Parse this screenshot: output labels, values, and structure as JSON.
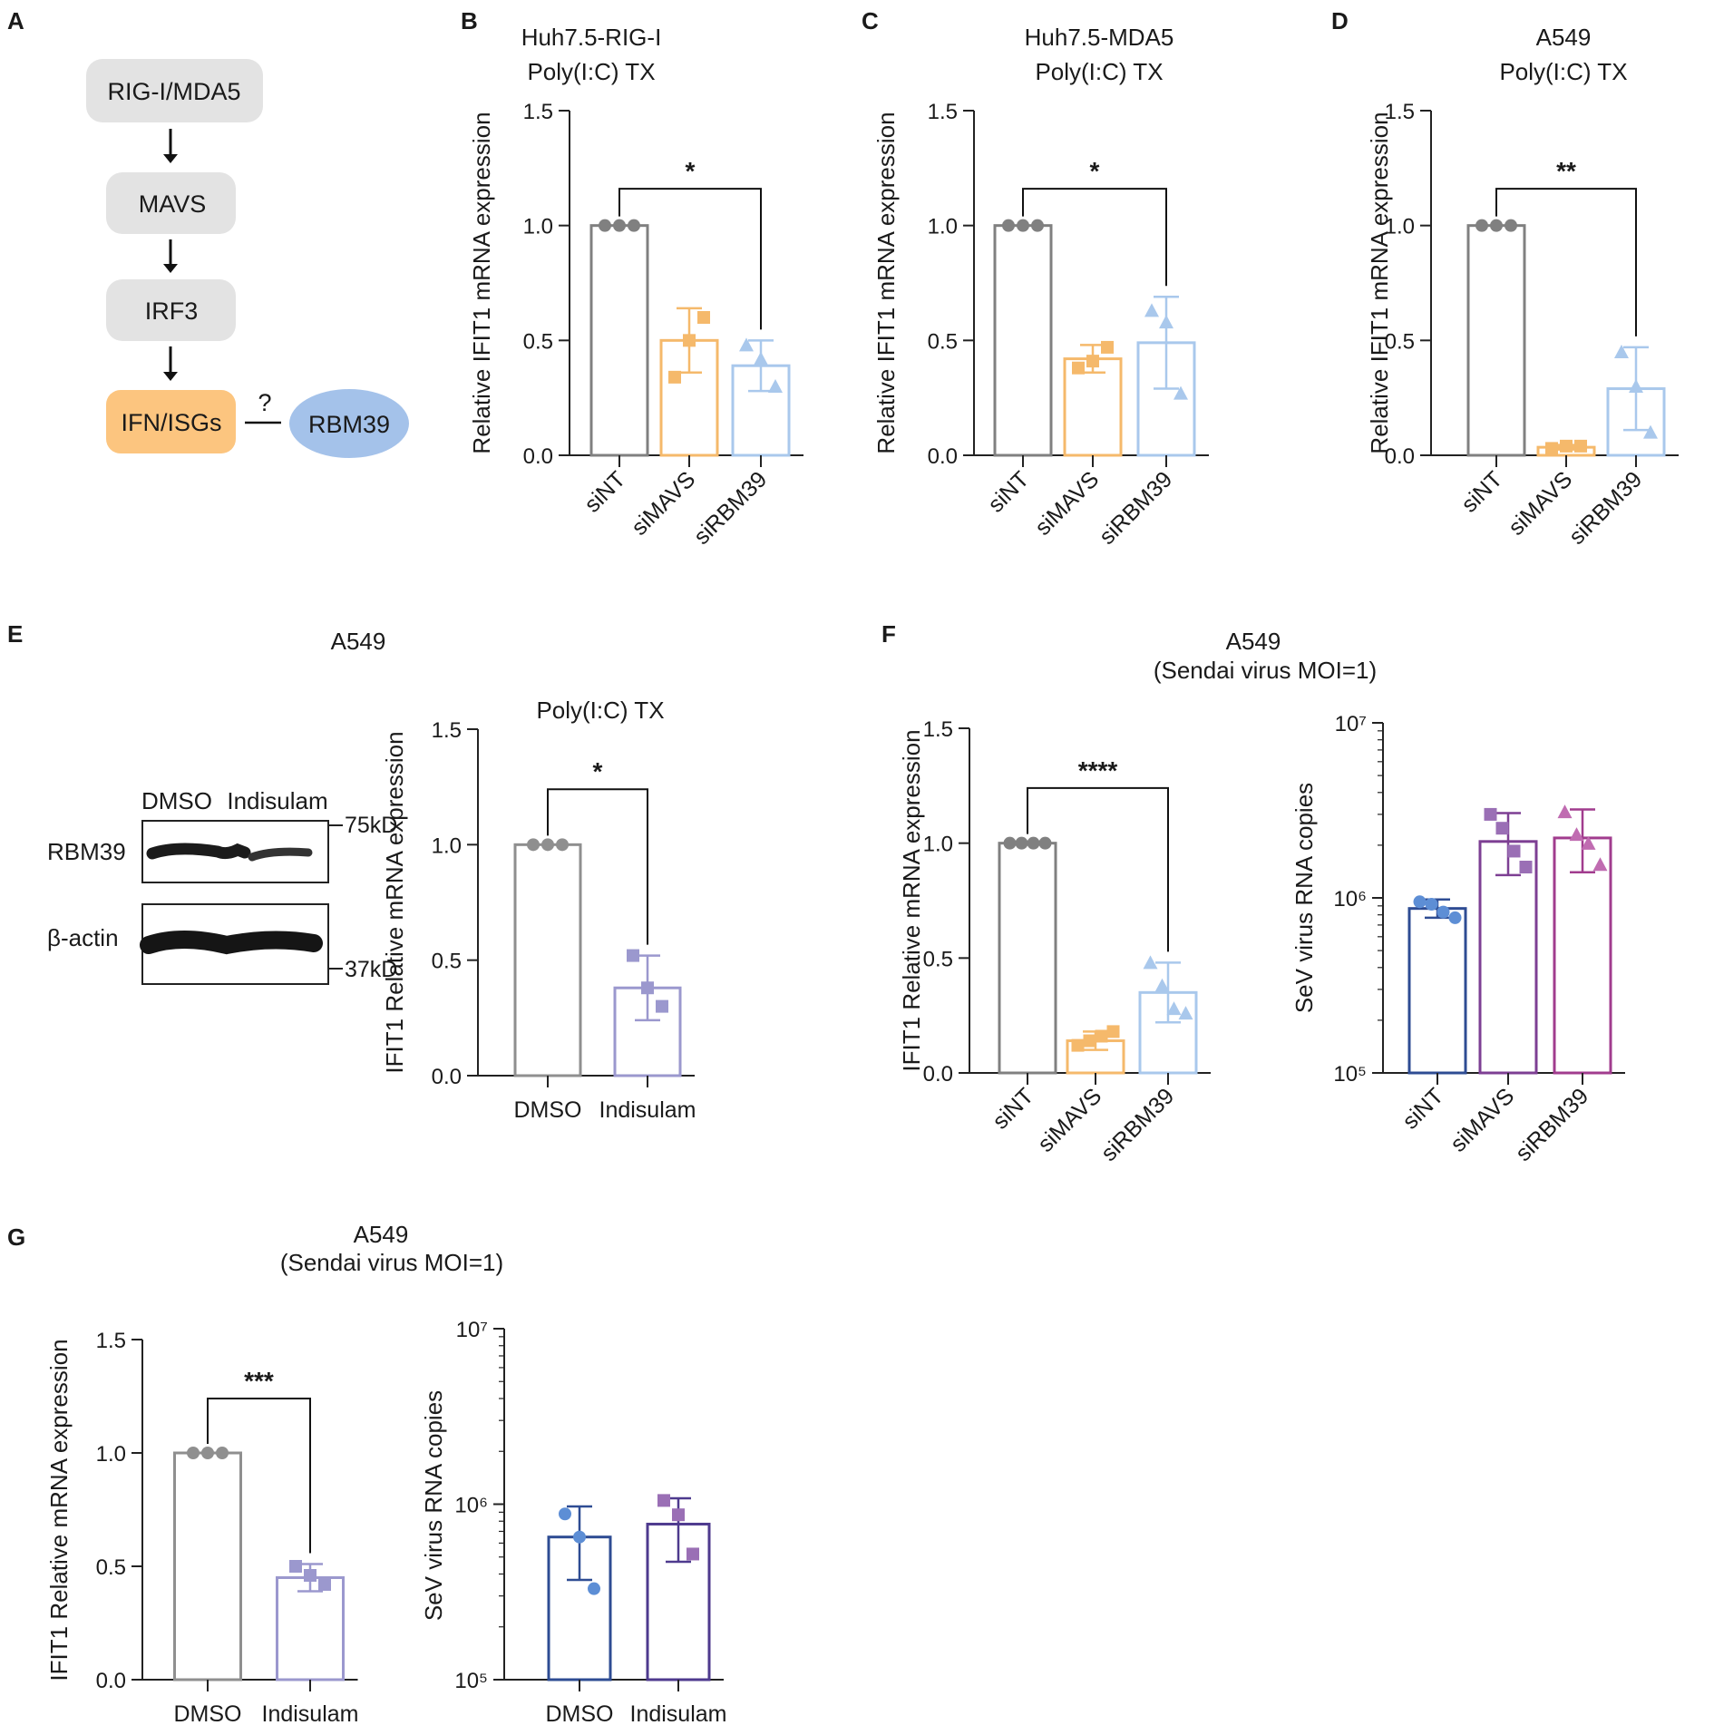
{
  "colors": {
    "siNT": "#808080",
    "siMAVS": "#F5B96B",
    "siRBM39": "#A9C8EC",
    "DMSO": "#8F8F8F",
    "Indisulam": "#9B98CE",
    "log_siNT": "#2E4C93",
    "log_siMAVS": "#7D3F93",
    "log_siRBM39": "#A13C8E",
    "log_DMSO": "#2E4C93",
    "log_Indisulam": "#4E3A8E",
    "dot_siNT_log": "#5D8ED5",
    "dot_siMAVS_log": "#9A6FB5",
    "dot_siRBM39_log": "#C06CB1",
    "flow_box": "#E3E3E3",
    "flow_ifn": "#FCC57F",
    "flow_rbm39": "#A4C2EA"
  },
  "panel_a": {
    "label": "A",
    "nodes": [
      "RIG-I/MDA5",
      "MAVS",
      "IRF3",
      "IFN/ISGs"
    ],
    "partner": "RBM39",
    "question": "?"
  },
  "panel_e_blot": {
    "cell_line": "A549",
    "lanes": [
      "DMSO",
      "Indisulam"
    ],
    "rows": [
      "RBM39",
      "β-actin"
    ],
    "markers": [
      "75kD",
      "37kD"
    ]
  },
  "group_titles": {
    "F": [
      "A549",
      "(Sendai virus MOI=1)"
    ],
    "G": [
      "A549",
      "(Sendai virus MOI=1)"
    ]
  },
  "chart_data": [
    {
      "id": "B",
      "panel_label": "B",
      "type": "bar",
      "title": [
        "Huh7.5-RIG-I",
        "Poly(I:C) TX"
      ],
      "ylabel": "Relative IFIT1 mRNA expression",
      "ylim": [
        0,
        1.5
      ],
      "yticks": [
        "0.0",
        "0.5",
        "1.0",
        "1.5"
      ],
      "categories": [
        "siNT",
        "siMAVS",
        "siRBM39"
      ],
      "values": [
        1.0,
        0.5,
        0.39
      ],
      "errors": [
        0,
        0.14,
        0.11
      ],
      "points": [
        [
          1.0,
          1.0,
          1.0
        ],
        [
          0.34,
          0.5,
          0.6
        ],
        [
          0.48,
          0.42,
          0.3
        ]
      ],
      "markers": [
        "circle",
        "square",
        "triangle"
      ],
      "colors": [
        "#808080",
        "#F5B96B",
        "#A9C8EC"
      ],
      "sig": {
        "from": 0,
        "to": 2,
        "label": "*",
        "y": 1.16
      }
    },
    {
      "id": "C",
      "panel_label": "C",
      "type": "bar",
      "title": [
        "Huh7.5-MDA5",
        "Poly(I:C) TX"
      ],
      "ylabel": "Relative IFIT1 mRNA expression",
      "ylim": [
        0,
        1.5
      ],
      "yticks": [
        "0.0",
        "0.5",
        "1.0",
        "1.5"
      ],
      "categories": [
        "siNT",
        "siMAVS",
        "siRBM39"
      ],
      "values": [
        1.0,
        0.42,
        0.49
      ],
      "errors": [
        0,
        0.06,
        0.2
      ],
      "points": [
        [
          1.0,
          1.0,
          1.0
        ],
        [
          0.38,
          0.41,
          0.47
        ],
        [
          0.63,
          0.58,
          0.27
        ]
      ],
      "markers": [
        "circle",
        "square",
        "triangle"
      ],
      "colors": [
        "#808080",
        "#F5B96B",
        "#A9C8EC"
      ],
      "sig": {
        "from": 0,
        "to": 2,
        "label": "*",
        "y": 1.16
      }
    },
    {
      "id": "D",
      "panel_label": "D",
      "type": "bar",
      "title": [
        "A549",
        "Poly(I:C) TX"
      ],
      "ylabel": "Relative IFIT1 mRNA expression",
      "ylim": [
        0,
        1.5
      ],
      "yticks": [
        "0.0",
        "0.5",
        "1.0",
        "1.5"
      ],
      "categories": [
        "siNT",
        "siMAVS",
        "siRBM39"
      ],
      "values": [
        1.0,
        0.035,
        0.29
      ],
      "errors": [
        0,
        0.01,
        0.18
      ],
      "points": [
        [
          1.0,
          1.0,
          1.0
        ],
        [
          0.03,
          0.04,
          0.04
        ],
        [
          0.45,
          0.3,
          0.1
        ]
      ],
      "markers": [
        "circle",
        "square",
        "triangle"
      ],
      "colors": [
        "#808080",
        "#F5B96B",
        "#A9C8EC"
      ],
      "sig": {
        "from": 0,
        "to": 2,
        "label": "**",
        "y": 1.16
      }
    },
    {
      "id": "E",
      "panel_label": "E",
      "type": "bar",
      "title": [
        "Poly(I:C) TX"
      ],
      "ylabel": "IFIT1 Relative  mRNA expression",
      "ylim": [
        0,
        1.5
      ],
      "yticks": [
        "0.0",
        "0.5",
        "1.0",
        "1.5"
      ],
      "categories": [
        "DMSO",
        "Indisulam"
      ],
      "values": [
        1.0,
        0.38
      ],
      "errors": [
        0,
        0.14
      ],
      "points": [
        [
          1.0,
          1.0,
          1.0
        ],
        [
          0.52,
          0.38,
          0.3
        ]
      ],
      "markers": [
        "circle",
        "square"
      ],
      "colors": [
        "#8F8F8F",
        "#9B98CE"
      ],
      "sig": {
        "from": 0,
        "to": 1,
        "label": "*",
        "y": 1.24
      }
    },
    {
      "id": "F1",
      "panel_label": "F",
      "type": "bar",
      "title": [],
      "ylabel": "IFIT1 Relative  mRNA expression",
      "ylim": [
        0,
        1.5
      ],
      "yticks": [
        "0.0",
        "0.5",
        "1.0",
        "1.5"
      ],
      "categories": [
        "siNT",
        "siMAVS",
        "siRBM39"
      ],
      "values": [
        1.0,
        0.14,
        0.35
      ],
      "errors": [
        0,
        0.04,
        0.13
      ],
      "points": [
        [
          1.0,
          1.0,
          1.0,
          1.0
        ],
        [
          0.12,
          0.14,
          0.16,
          0.18
        ],
        [
          0.48,
          0.38,
          0.28,
          0.26
        ]
      ],
      "markers": [
        "circle",
        "square",
        "triangle"
      ],
      "colors": [
        "#808080",
        "#F5B96B",
        "#A9C8EC"
      ],
      "sig": {
        "from": 0,
        "to": 2,
        "label": "****",
        "y": 1.24
      }
    },
    {
      "id": "F2",
      "panel_label": "",
      "type": "bar",
      "yscale": "log",
      "title": [],
      "ylabel": "SeV virus RNA copies",
      "ylim": [
        100000,
        10000000
      ],
      "yticks": [
        "10⁵",
        "10⁶",
        "10⁷"
      ],
      "categories": [
        "siNT",
        "siMAVS",
        "siRBM39"
      ],
      "values": [
        870000,
        2100000,
        2200000
      ],
      "errors": [
        [
          770000,
          980000
        ],
        [
          1350000,
          3050000
        ],
        [
          1400000,
          3200000
        ]
      ],
      "points": [
        [
          950000,
          920000,
          830000,
          770000
        ],
        [
          3000000,
          2500000,
          1850000,
          1500000
        ],
        [
          3100000,
          2300000,
          2050000,
          1550000
        ]
      ],
      "markers": [
        "circle",
        "square",
        "triangle"
      ],
      "colors": [
        "#2E4C93",
        "#7D3F93",
        "#A13C8E"
      ],
      "point_colors": [
        "#5D8ED5",
        "#9A6FB5",
        "#C06CB1"
      ],
      "sig": null
    },
    {
      "id": "G1",
      "panel_label": "G",
      "type": "bar",
      "title": [],
      "ylabel": "IFIT1 Relative  mRNA expression",
      "ylim": [
        0,
        1.5
      ],
      "yticks": [
        "0.0",
        "0.5",
        "1.0",
        "1.5"
      ],
      "categories": [
        "DMSO",
        "Indisulam"
      ],
      "values": [
        1.0,
        0.45
      ],
      "errors": [
        0,
        0.06
      ],
      "points": [
        [
          1.0,
          1.0,
          1.0
        ],
        [
          0.5,
          0.46,
          0.42
        ]
      ],
      "markers": [
        "circle",
        "square"
      ],
      "colors": [
        "#8F8F8F",
        "#9B98CE"
      ],
      "sig": {
        "from": 0,
        "to": 1,
        "label": "***",
        "y": 1.24
      }
    },
    {
      "id": "G2",
      "panel_label": "",
      "type": "bar",
      "yscale": "log",
      "title": [],
      "ylabel": "SeV virus RNA copies",
      "ylim": [
        100000,
        10000000
      ],
      "yticks": [
        "10⁵",
        "10⁶",
        "10⁷"
      ],
      "categories": [
        "DMSO",
        "Indisulam"
      ],
      "values": [
        650000,
        770000
      ],
      "errors": [
        [
          370000,
          970000
        ],
        [
          470000,
          1080000
        ]
      ],
      "points": [
        [
          880000,
          650000,
          330000
        ],
        [
          1050000,
          870000,
          520000
        ]
      ],
      "markers": [
        "circle",
        "square"
      ],
      "colors": [
        "#2E4C93",
        "#4E3A8E"
      ],
      "point_colors": [
        "#5D8ED5",
        "#9A6FB5"
      ],
      "sig": null
    }
  ]
}
